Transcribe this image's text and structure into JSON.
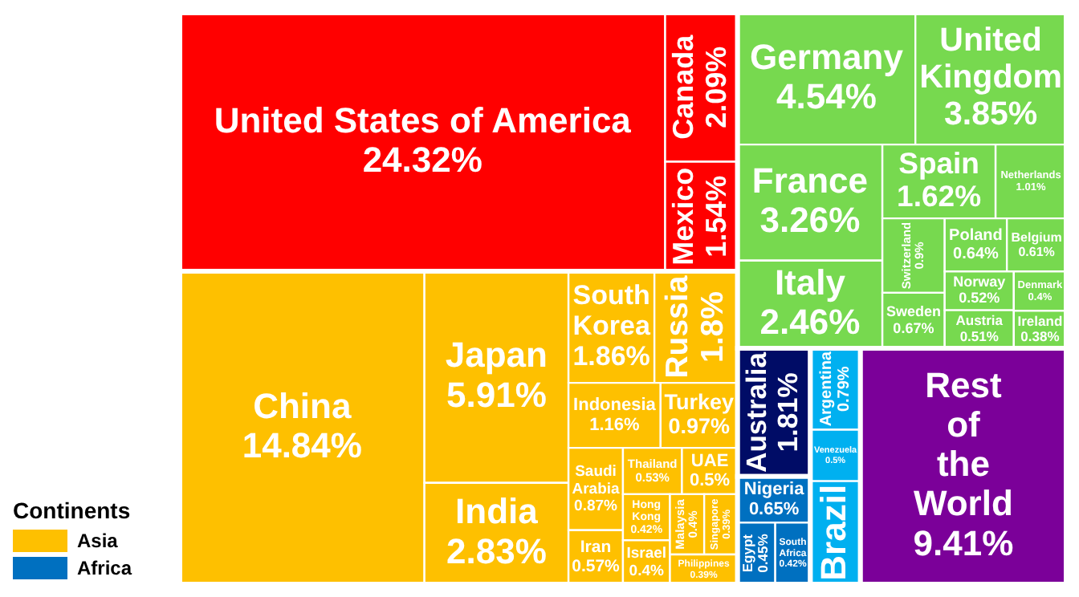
{
  "chart_data": {
    "type": "other",
    "legend": "bottom left",
    "legend_title": "Continents",
    "categories": [
      "United States of America",
      "Canada",
      "Mexico",
      "China",
      "Japan",
      "India",
      "South Korea",
      "Russia",
      "Indonesia",
      "Turkey",
      "Saudi Arabia",
      "Iran",
      "Thailand",
      "UAE",
      "Hong Kong",
      "Israel",
      "Malaysia",
      "Singapore",
      "Philippines",
      "Germany",
      "United Kingdom",
      "France",
      "Italy",
      "Spain",
      "Netherlands",
      "Switzerland",
      "Sweden",
      "Poland",
      "Belgium",
      "Norway",
      "Austria",
      "Denmark",
      "Ireland",
      "Australia",
      "Nigeria",
      "Egypt",
      "South Africa",
      "Argentina",
      "Venezuela",
      "Brazil",
      "Rest of the World"
    ],
    "series": [
      {
        "color": "#ff0000",
        "values": [
          24.32,
          2.09,
          1.54,
          null,
          null,
          null,
          null,
          null,
          null,
          null,
          null,
          null,
          null,
          null,
          null,
          null,
          null,
          null,
          null,
          null,
          null,
          null,
          null,
          null,
          null,
          null,
          null,
          null,
          null,
          null,
          null,
          null,
          null,
          null,
          null,
          null,
          null,
          null,
          null,
          null,
          null
        ],
        "value_labels": [
          "24.32%",
          "2.09%",
          "1.54%",
          null,
          null,
          null,
          null,
          null,
          null,
          null,
          null,
          null,
          null,
          null,
          null,
          null,
          null,
          null,
          null,
          null,
          null,
          null,
          null,
          null,
          null,
          null,
          null,
          null,
          null,
          null,
          null,
          null,
          null,
          null,
          null,
          null,
          null,
          null,
          null,
          null,
          null
        ]
      },
      {
        "name": "Asia",
        "color": "#fec000",
        "values": [
          null,
          null,
          null,
          14.84,
          5.91,
          2.83,
          1.86,
          1.8,
          1.16,
          0.97,
          0.87,
          0.57,
          0.53,
          0.5,
          0.42,
          0.4,
          0.4,
          0.39,
          0.39,
          null,
          null,
          null,
          null,
          null,
          null,
          null,
          null,
          null,
          null,
          null,
          null,
          null,
          null,
          null,
          null,
          null,
          null,
          null,
          null,
          null,
          null
        ],
        "value_labels": [
          null,
          null,
          null,
          "14.84%",
          "5.91%",
          "2.83%",
          "1.86%",
          "1.8%",
          "1.16%",
          "0.97%",
          "0.87%",
          "0.57%",
          "0.53%",
          "0.5%",
          "0.42%",
          "0.4%",
          "0.4%",
          "0.39%",
          "0.39%",
          null,
          null,
          null,
          null,
          null,
          null,
          null,
          null,
          null,
          null,
          null,
          null,
          null,
          null,
          null,
          null,
          null,
          null,
          null,
          null,
          null,
          null
        ]
      },
      {
        "color": "#77d94f",
        "values": [
          null,
          null,
          null,
          null,
          null,
          null,
          null,
          null,
          null,
          null,
          null,
          null,
          null,
          null,
          null,
          null,
          null,
          null,
          null,
          4.54,
          3.85,
          3.26,
          2.46,
          1.62,
          1.01,
          0.9,
          0.67,
          0.64,
          0.61,
          0.52,
          0.51,
          0.4,
          0.38,
          null,
          null,
          null,
          null,
          null,
          null,
          null,
          null
        ],
        "value_labels": [
          null,
          null,
          null,
          null,
          null,
          null,
          null,
          null,
          null,
          null,
          null,
          null,
          null,
          null,
          null,
          null,
          null,
          null,
          null,
          "4.54%",
          "3.85%",
          "3.26%",
          "2.46%",
          "1.62%",
          "1.01%",
          "0.9%",
          "0.67%",
          "0.64%",
          "0.61%",
          "0.52%",
          "0.51%",
          "0.4%",
          "0.38%",
          null,
          null,
          null,
          null,
          null,
          null,
          null,
          null
        ]
      },
      {
        "color": "#000c66",
        "values": [
          null,
          null,
          null,
          null,
          null,
          null,
          null,
          null,
          null,
          null,
          null,
          null,
          null,
          null,
          null,
          null,
          null,
          null,
          null,
          null,
          null,
          null,
          null,
          null,
          null,
          null,
          null,
          null,
          null,
          null,
          null,
          null,
          null,
          1.81,
          null,
          null,
          null,
          null,
          null,
          null,
          null
        ],
        "value_labels": [
          null,
          null,
          null,
          null,
          null,
          null,
          null,
          null,
          null,
          null,
          null,
          null,
          null,
          null,
          null,
          null,
          null,
          null,
          null,
          null,
          null,
          null,
          null,
          null,
          null,
          null,
          null,
          null,
          null,
          null,
          null,
          null,
          null,
          "1.81%",
          null,
          null,
          null,
          null,
          null,
          null,
          null
        ]
      },
      {
        "name": "Africa",
        "color": "#0070c0",
        "values": [
          null,
          null,
          null,
          null,
          null,
          null,
          null,
          null,
          null,
          null,
          null,
          null,
          null,
          null,
          null,
          null,
          null,
          null,
          null,
          null,
          null,
          null,
          null,
          null,
          null,
          null,
          null,
          null,
          null,
          null,
          null,
          null,
          null,
          null,
          0.65,
          0.45,
          0.42,
          null,
          null,
          null,
          null
        ],
        "value_labels": [
          null,
          null,
          null,
          null,
          null,
          null,
          null,
          null,
          null,
          null,
          null,
          null,
          null,
          null,
          null,
          null,
          null,
          null,
          null,
          null,
          null,
          null,
          null,
          null,
          null,
          null,
          null,
          null,
          null,
          null,
          null,
          null,
          null,
          null,
          "0.65%",
          "0.45%",
          "0.42%",
          null,
          null,
          null,
          null
        ]
      },
      {
        "color": "#00b0f0",
        "values": [
          null,
          null,
          null,
          null,
          null,
          null,
          null,
          null,
          null,
          null,
          null,
          null,
          null,
          null,
          null,
          null,
          null,
          null,
          null,
          null,
          null,
          null,
          null,
          null,
          null,
          null,
          null,
          null,
          null,
          null,
          null,
          null,
          null,
          null,
          null,
          null,
          null,
          0.79,
          0.5,
          null,
          null
        ],
        "value_labels": [
          null,
          null,
          null,
          null,
          null,
          null,
          null,
          null,
          null,
          null,
          null,
          null,
          null,
          null,
          null,
          null,
          null,
          null,
          null,
          null,
          null,
          null,
          null,
          null,
          null,
          null,
          null,
          null,
          null,
          null,
          null,
          null,
          null,
          null,
          null,
          null,
          null,
          "0.79%",
          "0.5%",
          null,
          null
        ]
      },
      {
        "color": "#7b0099",
        "values": [
          null,
          null,
          null,
          null,
          null,
          null,
          null,
          null,
          null,
          null,
          null,
          null,
          null,
          null,
          null,
          null,
          null,
          null,
          null,
          null,
          null,
          null,
          null,
          null,
          null,
          null,
          null,
          null,
          null,
          null,
          null,
          null,
          null,
          null,
          null,
          null,
          null,
          null,
          null,
          null,
          9.41
        ],
        "value_labels": [
          null,
          null,
          null,
          null,
          null,
          null,
          null,
          null,
          null,
          null,
          null,
          null,
          null,
          null,
          null,
          null,
          null,
          null,
          null,
          null,
          null,
          null,
          null,
          null,
          null,
          null,
          null,
          null,
          null,
          null,
          null,
          null,
          null,
          null,
          null,
          null,
          null,
          null,
          null,
          null,
          "9.41%"
        ]
      }
    ]
  }
}
